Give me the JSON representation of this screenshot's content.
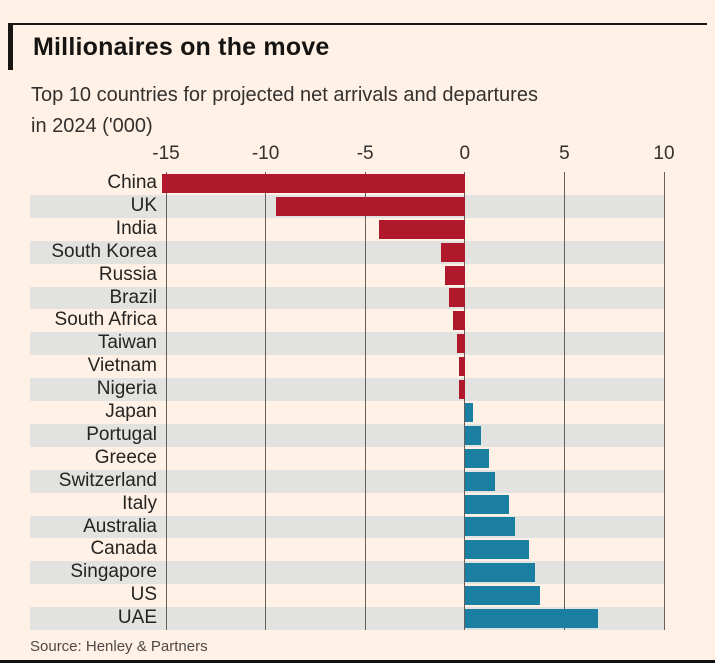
{
  "chart_data": {
    "type": "bar",
    "orientation": "horizontal",
    "title": "Millionaires on the move",
    "subtitle": "Top 10 countries for projected net arrivals and departures in 2024 ('000)",
    "subtitle_lines": [
      "Top 10 countries for projected net arrivals and departures",
      "in 2024 ('000)"
    ],
    "source": "Source: Henley & Partners",
    "xlabel": "",
    "ylabel": "",
    "xlim": [
      -15,
      10
    ],
    "x_ticks": [
      -15,
      -10,
      -5,
      0,
      5,
      10
    ],
    "x_tick_labels": [
      "-15",
      "-10",
      "-5",
      "0",
      "5",
      "10"
    ],
    "grid": "vertical",
    "legend": "none",
    "row_stripes": true,
    "categories": [
      "China",
      "UK",
      "India",
      "South Korea",
      "Russia",
      "Brazil",
      "South Africa",
      "Taiwan",
      "Vietnam",
      "Nigeria",
      "Japan",
      "Portugal",
      "Greece",
      "Switzerland",
      "Italy",
      "Australia",
      "Canada",
      "Singapore",
      "US",
      "UAE"
    ],
    "values": [
      -15.2,
      -9.5,
      -4.3,
      -1.2,
      -1.0,
      -0.8,
      -0.6,
      -0.4,
      -0.3,
      -0.3,
      0.4,
      0.8,
      1.2,
      1.5,
      2.2,
      2.5,
      3.2,
      3.5,
      3.8,
      6.7
    ],
    "colors": {
      "negative": "#B0182C",
      "positive": "#1A7FA0",
      "stripe": "#E2E2E0",
      "gridline": "#66605C",
      "background": "#FFF1E5"
    }
  }
}
